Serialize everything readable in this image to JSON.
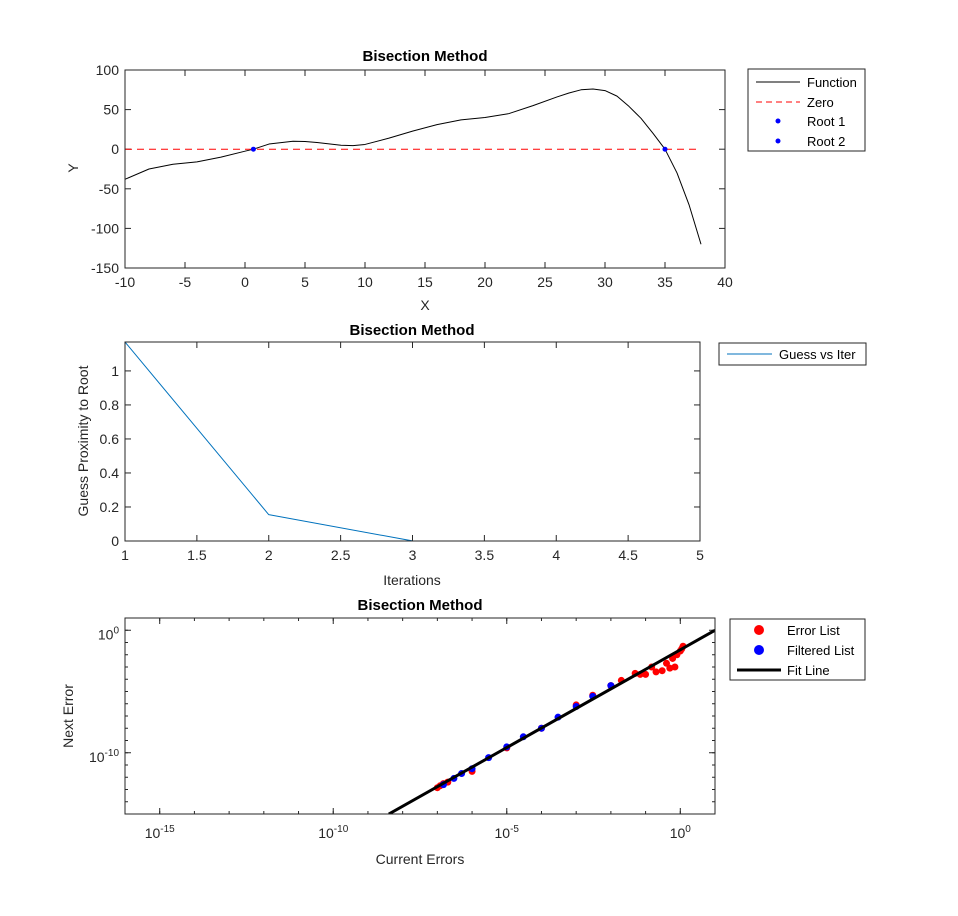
{
  "chart_data": [
    {
      "type": "line",
      "title": "Bisection Method",
      "xlabel": "X",
      "ylabel": "Y",
      "xlim": [
        -10,
        40
      ],
      "ylim": [
        -150,
        100
      ],
      "xticks": [
        -10,
        -5,
        0,
        5,
        10,
        15,
        20,
        25,
        30,
        35,
        40
      ],
      "yticks": [
        -150,
        -100,
        -50,
        0,
        50,
        100
      ],
      "legend_position": "outside-top-right",
      "series": [
        {
          "name": "Function",
          "style": "solid",
          "color": "#000000",
          "x": [
            -10,
            -8,
            -6,
            -4,
            -2,
            0,
            0.7,
            2,
            4,
            5,
            6,
            8,
            9,
            10,
            12,
            14,
            16,
            18,
            20,
            22,
            24,
            26,
            27,
            28,
            29,
            30,
            31,
            32,
            33,
            34,
            35,
            36,
            37,
            38
          ],
          "y": [
            -38,
            -25,
            -19,
            -16,
            -10,
            -2.5,
            0,
            6.5,
            10,
            9.8,
            8.5,
            5,
            4.5,
            6,
            14,
            23,
            31,
            37,
            40,
            45,
            55,
            66,
            71,
            75,
            76,
            74,
            67,
            54,
            39,
            20,
            0,
            -30,
            -70,
            -120
          ]
        },
        {
          "name": "Zero",
          "style": "dashed",
          "color": "#ff0000",
          "x": [
            -10,
            38
          ],
          "y": [
            0,
            0
          ]
        },
        {
          "name": "Root 1",
          "style": "marker",
          "color": "#0000ff",
          "x": [
            0.7
          ],
          "y": [
            0
          ]
        },
        {
          "name": "Root 2",
          "style": "marker",
          "color": "#0000ff",
          "x": [
            35
          ],
          "y": [
            0
          ]
        }
      ]
    },
    {
      "type": "line",
      "title": "Bisection Method",
      "xlabel": "Iterations",
      "ylabel": "Guess Proximity to Root",
      "xlim": [
        1,
        5
      ],
      "ylim": [
        0,
        1.17
      ],
      "xticks": [
        1,
        1.5,
        2,
        2.5,
        3,
        3.5,
        4,
        4.5,
        5
      ],
      "yticks": [
        0,
        0.2,
        0.4,
        0.6,
        0.8,
        1
      ],
      "legend_position": "outside-top-right",
      "series": [
        {
          "name": "Guess vs Iter",
          "style": "solid",
          "color": "#0072bd",
          "x": [
            1,
            2,
            3,
            4,
            5
          ],
          "y": [
            1.17,
            0.155,
            0.0005,
            0.0001,
            0
          ]
        }
      ]
    },
    {
      "type": "scatter",
      "title": "Bisection Method",
      "xlabel": "Current Errors",
      "ylabel": "Next Error",
      "xscale": "log",
      "yscale": "log",
      "xlim": [
        1e-16,
        10.0
      ],
      "ylim": [
        1e-15,
        10.0
      ],
      "xticks": [
        1e-15,
        1e-10,
        1e-05,
        1.0
      ],
      "xtick_labels": [
        [
          "10",
          "-15"
        ],
        [
          "10",
          "-10"
        ],
        [
          "10",
          "-5"
        ],
        [
          "10",
          "0"
        ]
      ],
      "yticks": [
        1e-10,
        1.0
      ],
      "ytick_labels": [
        [
          "10",
          "-10"
        ],
        [
          "10",
          "0"
        ]
      ],
      "legend_position": "outside-top-right",
      "series": [
        {
          "name": "Error List",
          "style": "marker",
          "color": "#ff0000",
          "x": [
            1e-07,
            1.2e-07,
            1.5e-07,
            2e-07,
            1e-06,
            1e-05,
            0.0001,
            0.001,
            0.003,
            0.01,
            0.02,
            0.05,
            0.07,
            0.1,
            0.15,
            0.2,
            0.3,
            0.4,
            0.5,
            0.6,
            0.7,
            0.8,
            1,
            1.1,
            1.2
          ],
          "y": [
            1.4e-13,
            2e-13,
            3e-13,
            4e-13,
            3e-12,
            2.5e-10,
            1e-08,
            8e-07,
            5e-06,
            3e-05,
            8e-05,
            0.0003,
            0.00025,
            0.00025,
            0.001,
            0.0004,
            0.0005,
            0.002,
            0.0008,
            0.005,
            0.001,
            0.01,
            0.02,
            0.03,
            0.05
          ]
        },
        {
          "name": "Filtered List",
          "style": "marker",
          "color": "#0000ff",
          "x": [
            1.5e-07,
            3e-07,
            5e-07,
            1e-06,
            3e-06,
            1e-05,
            3e-05,
            0.0001,
            0.0003,
            0.001,
            0.003,
            0.01
          ],
          "y": [
            2.5e-13,
            8e-13,
            2e-12,
            5e-12,
            4e-11,
            3e-10,
            2e-09,
            1e-08,
            8e-08,
            6e-07,
            4e-06,
            3e-05
          ]
        },
        {
          "name": "Fit Line",
          "style": "solid",
          "color": "#000000",
          "x": [
            4e-09,
            10
          ],
          "y": [
            1e-15,
            1
          ]
        }
      ]
    }
  ]
}
